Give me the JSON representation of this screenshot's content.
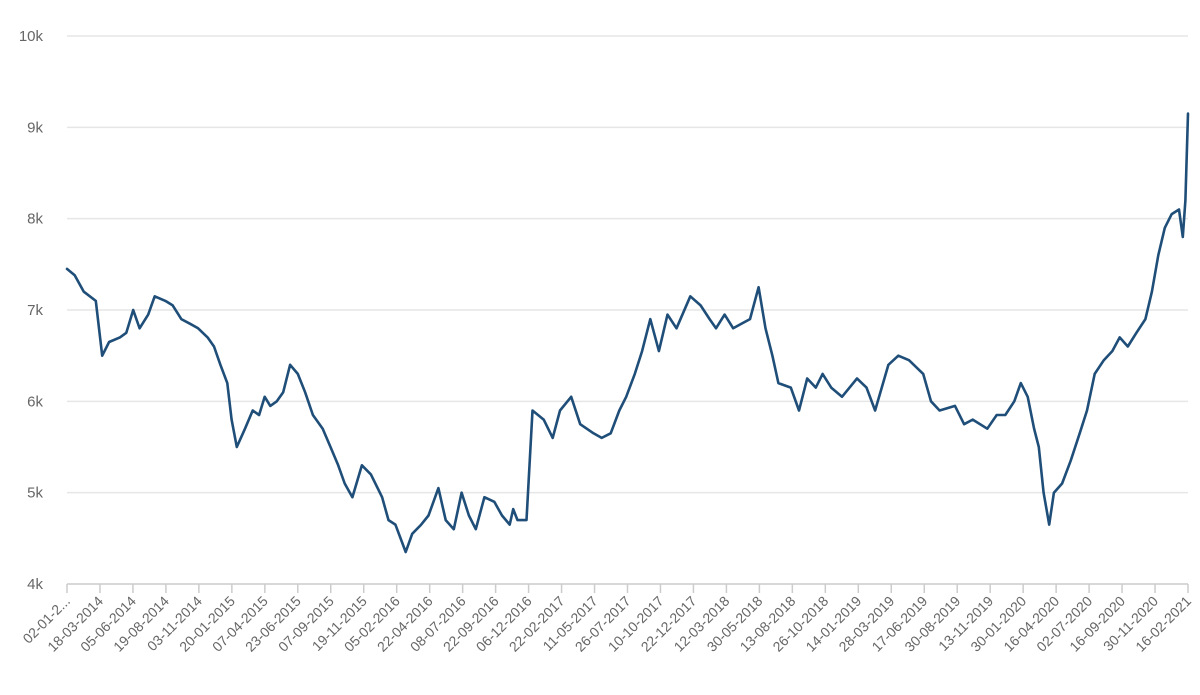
{
  "chart_data": {
    "type": "line",
    "title": "",
    "xlabel": "",
    "ylabel": "",
    "grid": true,
    "legend": "none",
    "color": "#1f4e79",
    "ylim": [
      4000,
      10000
    ],
    "y_ticks": [
      {
        "value": 4000,
        "label": "4k"
      },
      {
        "value": 5000,
        "label": "5k"
      },
      {
        "value": 6000,
        "label": "6k"
      },
      {
        "value": 7000,
        "label": "7k"
      },
      {
        "value": 8000,
        "label": "8k"
      },
      {
        "value": 9000,
        "label": "9k"
      },
      {
        "value": 10000,
        "label": "10k"
      }
    ],
    "x_tick_labels": [
      "02-01-2...",
      "18-03-2014",
      "05-06-2014",
      "19-08-2014",
      "03-11-2014",
      "20-01-2015",
      "07-04-2015",
      "23-06-2015",
      "07-09-2015",
      "19-11-2015",
      "05-02-2016",
      "22-04-2016",
      "08-07-2016",
      "22-09-2016",
      "06-12-2016",
      "22-02-2017",
      "11-05-2017",
      "26-07-2017",
      "10-10-2017",
      "22-12-2017",
      "12-03-2018",
      "30-05-2018",
      "13-08-2018",
      "26-10-2018",
      "14-01-2019",
      "28-03-2019",
      "17-06-2019",
      "30-08-2019",
      "13-11-2019",
      "30-01-2020",
      "16-04-2020",
      "02-07-2020",
      "16-09-2020",
      "30-11-2020",
      "16-02-2021"
    ],
    "series": [
      {
        "name": "",
        "x": [
          "2014-01-02",
          "2014-01-20",
          "2014-02-10",
          "2014-03-10",
          "2014-03-25",
          "2014-04-10",
          "2014-05-05",
          "2014-05-20",
          "2014-06-05",
          "2014-06-20",
          "2014-07-10",
          "2014-07-25",
          "2014-08-19",
          "2014-09-05",
          "2014-09-25",
          "2014-10-15",
          "2014-11-03",
          "2014-11-25",
          "2014-12-10",
          "2014-12-25",
          "2015-01-10",
          "2015-01-20",
          "2015-02-01",
          "2015-02-20",
          "2015-03-10",
          "2015-03-25",
          "2015-04-07",
          "2015-04-20",
          "2015-05-05",
          "2015-05-20",
          "2015-06-05",
          "2015-06-23",
          "2015-07-10",
          "2015-07-28",
          "2015-08-20",
          "2015-09-07",
          "2015-09-25",
          "2015-10-10",
          "2015-10-28",
          "2015-11-19",
          "2015-12-10",
          "2016-01-05",
          "2016-01-20",
          "2016-02-05",
          "2016-02-29",
          "2016-03-15",
          "2016-04-05",
          "2016-04-22",
          "2016-05-15",
          "2016-06-01",
          "2016-06-20",
          "2016-07-08",
          "2016-07-25",
          "2016-08-10",
          "2016-08-30",
          "2016-09-22",
          "2016-10-10",
          "2016-10-28",
          "2016-11-05",
          "2016-11-15",
          "2016-12-06",
          "2016-12-20",
          "2017-01-15",
          "2017-02-05",
          "2017-02-22",
          "2017-03-20",
          "2017-04-10",
          "2017-05-11",
          "2017-05-30",
          "2017-06-20",
          "2017-07-10",
          "2017-07-26",
          "2017-08-15",
          "2017-09-01",
          "2017-09-20",
          "2017-10-10",
          "2017-10-30",
          "2017-11-20",
          "2017-12-22",
          "2018-01-15",
          "2018-02-05",
          "2018-02-20",
          "2018-03-12",
          "2018-04-01",
          "2018-04-20",
          "2018-05-10",
          "2018-05-30",
          "2018-06-15",
          "2018-07-01",
          "2018-07-15",
          "2018-08-13",
          "2018-09-01",
          "2018-09-20",
          "2018-10-10",
          "2018-10-26",
          "2018-11-15",
          "2018-12-10",
          "2019-01-14",
          "2019-02-05",
          "2019-02-25",
          "2019-03-28",
          "2019-04-20",
          "2019-05-15",
          "2019-06-17",
          "2019-07-05",
          "2019-07-25",
          "2019-08-30",
          "2019-09-20",
          "2019-10-10",
          "2019-11-13",
          "2019-12-05",
          "2019-12-25",
          "2020-01-15",
          "2020-01-30",
          "2020-02-15",
          "2020-03-01",
          "2020-03-12",
          "2020-03-23",
          "2020-04-05",
          "2020-04-16",
          "2020-05-05",
          "2020-05-25",
          "2020-06-15",
          "2020-07-02",
          "2020-07-20",
          "2020-08-10",
          "2020-08-30",
          "2020-09-16",
          "2020-10-05",
          "2020-10-25",
          "2020-11-15",
          "2020-11-30",
          "2020-12-15",
          "2020-12-30",
          "2021-01-15",
          "2021-02-01",
          "2021-02-10",
          "2021-02-16",
          "2021-02-22"
        ],
        "y": [
          7450,
          7380,
          7200,
          7100,
          6500,
          6650,
          6700,
          6750,
          7000,
          6800,
          6950,
          7150,
          7100,
          7050,
          6900,
          6850,
          6800,
          6700,
          6600,
          6400,
          6200,
          5800,
          5500,
          5700,
          5900,
          5850,
          6050,
          5950,
          6000,
          6100,
          6400,
          6300,
          6100,
          5850,
          5700,
          5500,
          5300,
          5100,
          4950,
          5300,
          5200,
          4950,
          4700,
          4650,
          4350,
          4550,
          4650,
          4750,
          5050,
          4700,
          4600,
          5000,
          4750,
          4600,
          4950,
          4900,
          4750,
          4650,
          4820,
          4700,
          4700,
          5900,
          5800,
          5600,
          5900,
          6050,
          5750,
          5650,
          5600,
          5650,
          5900,
          6050,
          6300,
          6550,
          6900,
          6550,
          6950,
          6800,
          7150,
          7050,
          6900,
          6800,
          6950,
          6800,
          6850,
          6900,
          7250,
          6800,
          6500,
          6200,
          6150,
          5900,
          6250,
          6150,
          6300,
          6150,
          6050,
          6250,
          6150,
          5900,
          6400,
          6500,
          6450,
          6300,
          6000,
          5900,
          5950,
          5750,
          5800,
          5700,
          5850,
          5850,
          6000,
          6200,
          6050,
          5700,
          5500,
          5000,
          4650,
          5000,
          5100,
          5350,
          5650,
          5900,
          6300,
          6450,
          6550,
          6700,
          6600,
          6750,
          6900,
          7200,
          7600,
          7900,
          8050,
          8100,
          7800,
          8200,
          9150
        ]
      }
    ]
  }
}
